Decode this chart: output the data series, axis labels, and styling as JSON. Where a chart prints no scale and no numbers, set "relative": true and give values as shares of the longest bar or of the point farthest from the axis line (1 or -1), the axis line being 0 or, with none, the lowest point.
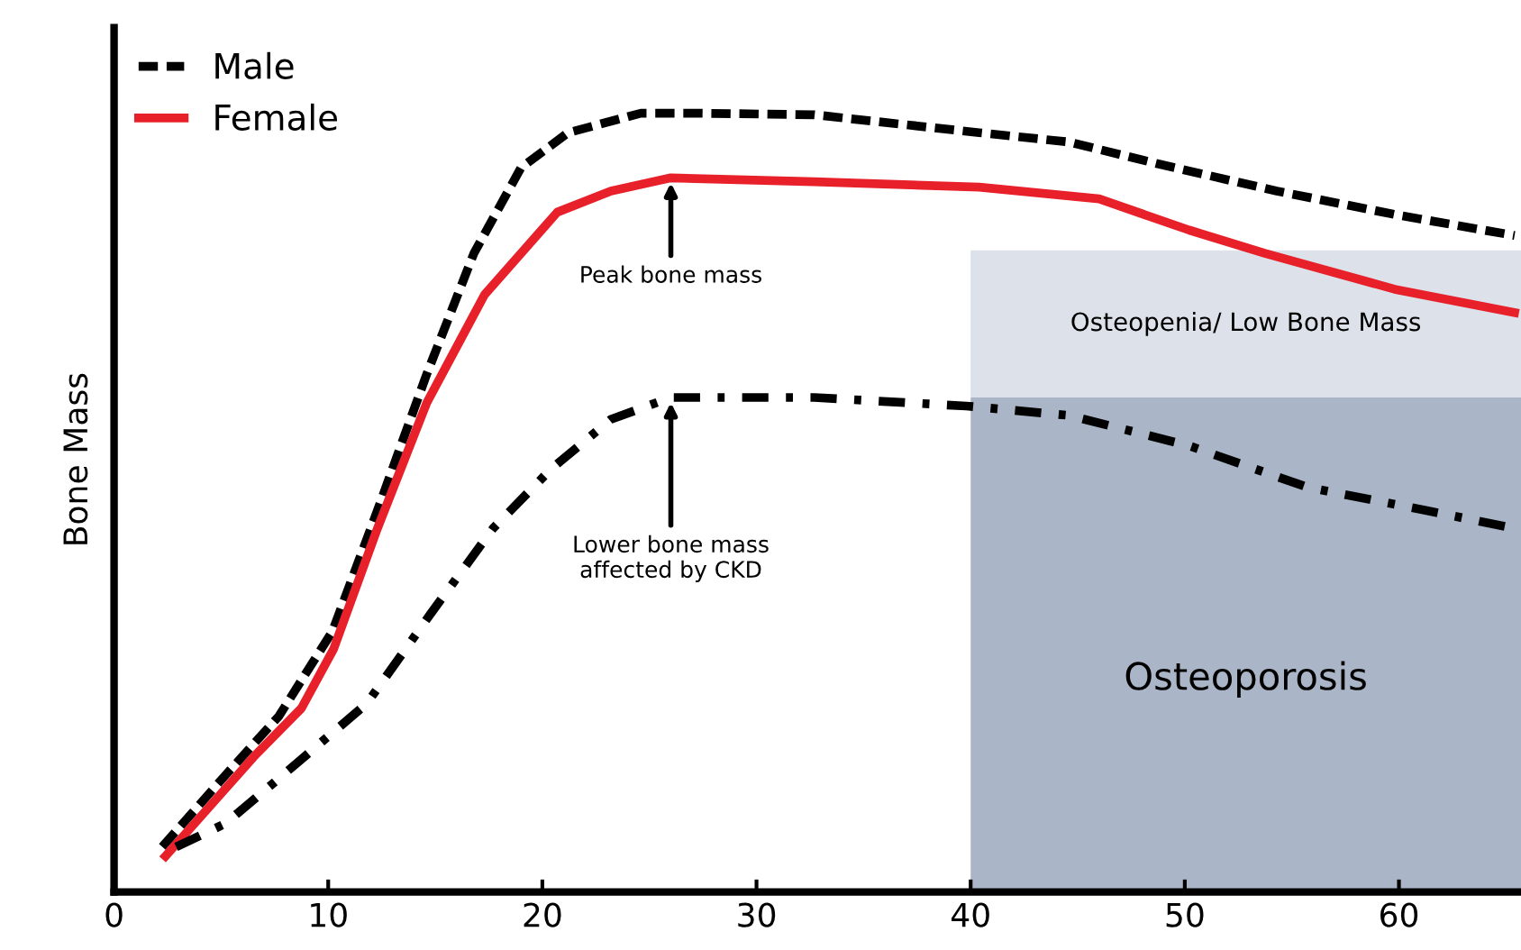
{
  "chart_data": {
    "type": "line",
    "ylabel": "Bone Mass",
    "relative": true,
    "xlim": [
      0,
      65.7
    ],
    "xticks": [
      0,
      10,
      20,
      30,
      40,
      50,
      60
    ],
    "series": [
      {
        "name": "Male",
        "color": "#000000",
        "line_style": "dashed",
        "x": [
          2.25,
          5.2,
          7.7,
          10.2,
          12.3,
          14.6,
          16.8,
          19,
          21.2,
          24.6,
          27.3,
          32.7,
          40.4,
          44.6,
          48.75,
          54.3,
          59.8,
          65.4
        ],
        "values": [
          0.058,
          0.15,
          0.226,
          0.335,
          0.49,
          0.665,
          0.82,
          0.93,
          0.975,
          1.0,
          1.0,
          0.998,
          0.975,
          0.963,
          0.935,
          0.9,
          0.87,
          0.843
        ]
      },
      {
        "name": "Female",
        "color": "#e8202a",
        "line_style": "solid",
        "x": [
          2.4,
          6.5,
          8.75,
          10.25,
          12.3,
          14.6,
          17.3,
          20.7,
          23.2,
          26,
          32.7,
          40.4,
          46,
          50.2,
          53.75,
          59.8,
          65.4
        ],
        "values": [
          0.046,
          0.173,
          0.236,
          0.312,
          0.467,
          0.628,
          0.767,
          0.873,
          0.9,
          0.917,
          0.912,
          0.905,
          0.89,
          0.85,
          0.82,
          0.774,
          0.744
        ]
      },
      {
        "color": "#000000",
        "line_style": "dashdot",
        "x": [
          2.9,
          5.2,
          7.7,
          11.8,
          14.8,
          17.7,
          20.4,
          23.2,
          26,
          32.7,
          39.8,
          44.6,
          50.2,
          55.7,
          61.25,
          65.4
        ],
        "values": [
          0.058,
          0.088,
          0.146,
          0.242,
          0.358,
          0.467,
          0.543,
          0.607,
          0.635,
          0.635,
          0.624,
          0.612,
          0.573,
          0.52,
          0.49,
          0.467
        ]
      }
    ],
    "bands": [
      {
        "axis": "x",
        "from": 40,
        "to": 65.7,
        "label": "Osteoporosis",
        "color": "#aab6c8"
      },
      {
        "axis": "y",
        "from": 0.635,
        "to": 0.824,
        "label": "Osteopenia/ Low Bone Mass",
        "color": "#dde2ea"
      }
    ],
    "annotations": [
      {
        "text": "Peak bone mass",
        "x": 26,
        "y": 0.917
      },
      {
        "text": "Lower bone mass\naffected by CKD",
        "x": 26,
        "y": 0.635
      }
    ],
    "legend": "top left",
    "grid": false,
    "marker": "none"
  }
}
